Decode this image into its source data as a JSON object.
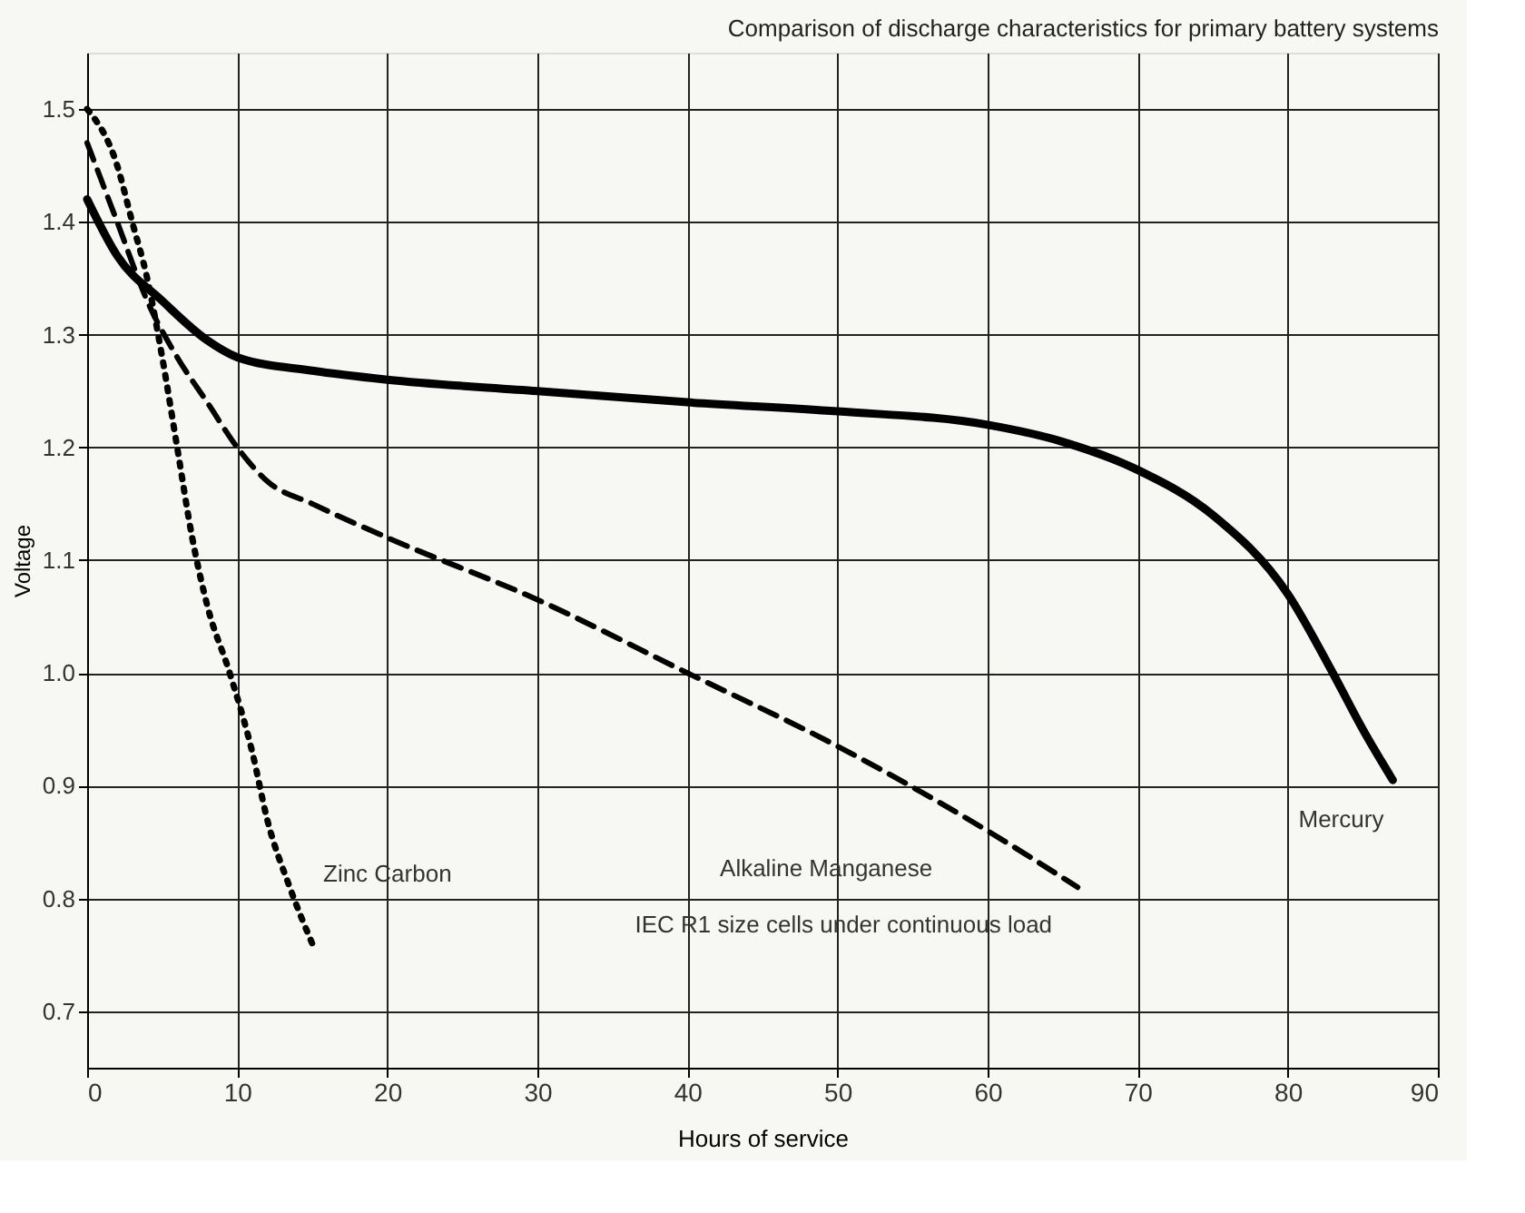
{
  "chart_data": {
    "type": "line",
    "title": "Comparison of discharge characteristics for primary battery systems",
    "xlabel": "Hours of service",
    "ylabel": "Voltage",
    "xlim": [
      0,
      90
    ],
    "xticks": [
      0,
      10,
      20,
      30,
      40,
      50,
      60,
      70,
      80,
      90
    ],
    "ylim": [
      0.65,
      1.55
    ],
    "yticks": [
      0.7,
      0.8,
      0.9,
      {
        "value": 1,
        "label": "1.0"
      },
      1.1,
      1.2,
      1.3,
      1.4,
      1.5
    ],
    "grid": true,
    "marker": "none",
    "annotations": [
      "IEC R1 size cells under continuous load"
    ],
    "series": [
      {
        "name": "Mercury",
        "color": "#000000",
        "line_style": "solid",
        "x": [
          0,
          2,
          5,
          8,
          10,
          15,
          20,
          30,
          40,
          50,
          60,
          65,
          70,
          75,
          80,
          83,
          85,
          87
        ],
        "values": [
          1.42,
          1.37,
          1.33,
          1.295,
          1.28,
          1.268,
          1.26,
          1.25,
          1.24,
          1.232,
          1.22,
          1.205,
          1.18,
          1.14,
          1.07,
          1.0,
          0.95,
          0.905
        ]
      },
      {
        "name": "Alkaline Manganese",
        "color": "#000000",
        "line_style": "dashed",
        "x": [
          0,
          2,
          4,
          6,
          8,
          10,
          12,
          15,
          20,
          30,
          40,
          50,
          60,
          66
        ],
        "values": [
          1.47,
          1.4,
          1.33,
          1.28,
          1.24,
          1.2,
          1.17,
          1.15,
          1.12,
          1.065,
          1.0,
          0.935,
          0.86,
          0.81
        ]
      },
      {
        "name": "Zinc Carbon",
        "color": "#000000",
        "line_style": "dotted",
        "x": [
          0,
          2,
          3,
          4,
          5,
          6,
          7,
          8,
          9.5,
          11,
          12,
          13.5,
          15
        ],
        "values": [
          1.5,
          1.45,
          1.4,
          1.35,
          1.28,
          1.2,
          1.12,
          1.06,
          1.0,
          0.93,
          0.87,
          0.81,
          0.76
        ]
      }
    ]
  }
}
